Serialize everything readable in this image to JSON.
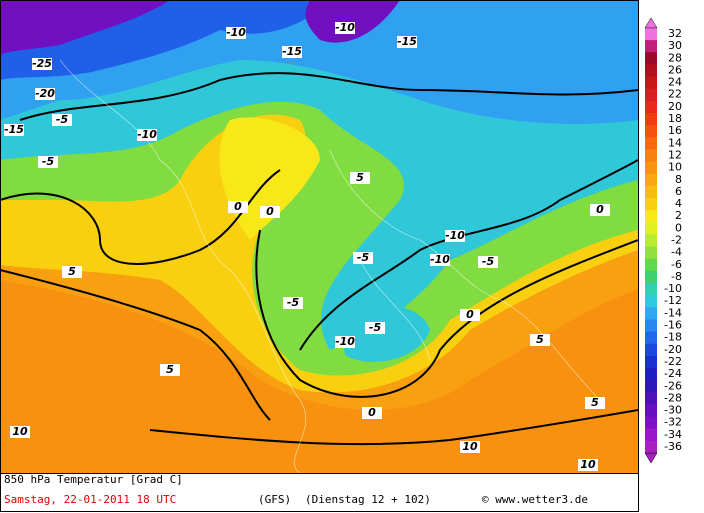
{
  "map": {
    "title": "850 hPa Temperatur [Grad C]",
    "date": "Samstag, 22-01-2011   18 UTC",
    "model": "(GFS)",
    "forecast": "(Dienstag 12 + 102)",
    "credit": "© www.wetter3.de",
    "scale": [
      {
        "value": 32,
        "color": "#f070e0"
      },
      {
        "value": 30,
        "color": "#c0207a"
      },
      {
        "value": 28,
        "color": "#9a0a2a"
      },
      {
        "value": 26,
        "color": "#b01020"
      },
      {
        "value": 24,
        "color": "#c81818"
      },
      {
        "value": 22,
        "color": "#d82020"
      },
      {
        "value": 20,
        "color": "#e82818"
      },
      {
        "value": 18,
        "color": "#f03c10"
      },
      {
        "value": 16,
        "color": "#f45010"
      },
      {
        "value": 14,
        "color": "#f86810"
      },
      {
        "value": 12,
        "color": "#f88010"
      },
      {
        "value": 10,
        "color": "#f89410"
      },
      {
        "value": 8,
        "color": "#f8a810"
      },
      {
        "value": 6,
        "color": "#f8bc10"
      },
      {
        "value": 4,
        "color": "#f8d010"
      },
      {
        "value": 2,
        "color": "#f8e818"
      },
      {
        "value": 0,
        "color": "#e0f020"
      },
      {
        "value": -2,
        "color": "#b8ec30"
      },
      {
        "value": -4,
        "color": "#90e040"
      },
      {
        "value": -6,
        "color": "#60d850"
      },
      {
        "value": -8,
        "color": "#40d070"
      },
      {
        "value": -10,
        "color": "#30d0b0"
      },
      {
        "value": -12,
        "color": "#30c8e0"
      },
      {
        "value": -14,
        "color": "#30a8f0"
      },
      {
        "value": -16,
        "color": "#2888f0"
      },
      {
        "value": -18,
        "color": "#2068e8"
      },
      {
        "value": -20,
        "color": "#1848e0"
      },
      {
        "value": -22,
        "color": "#1830d0"
      },
      {
        "value": -24,
        "color": "#2020c0"
      },
      {
        "value": -26,
        "color": "#3018b8"
      },
      {
        "value": -28,
        "color": "#5010b8"
      },
      {
        "value": -30,
        "color": "#6810c0"
      },
      {
        "value": -32,
        "color": "#8010c8"
      },
      {
        "value": -34,
        "color": "#9818c8"
      },
      {
        "value": -36,
        "color": "#a820c0"
      }
    ],
    "contour_labels": [
      -25,
      -20,
      -15,
      -10,
      -5,
      0,
      5,
      -10,
      -5,
      0,
      5,
      10,
      -15,
      -10,
      -5,
      -10,
      -5,
      0,
      5,
      5,
      10,
      -10,
      -15,
      -10,
      -5,
      0,
      5,
      10,
      0,
      -5
    ]
  }
}
